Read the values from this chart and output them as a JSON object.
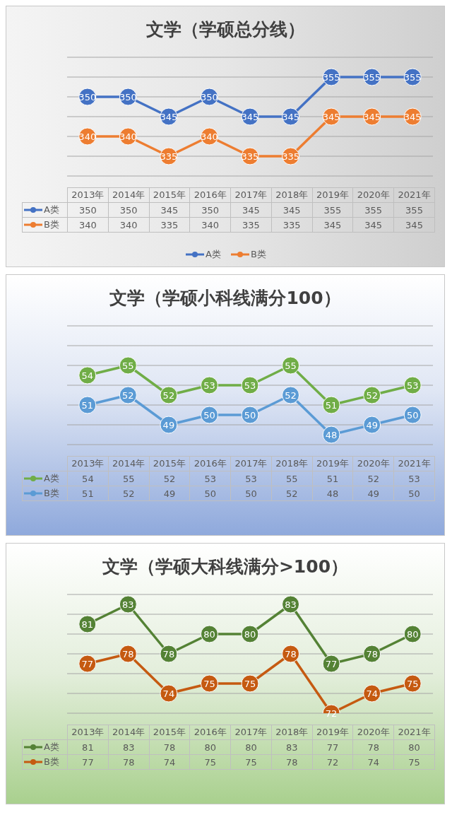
{
  "chart_data": [
    {
      "type": "line",
      "title": "文学（学硕总分线）",
      "categories": [
        "2013年",
        "2014年",
        "2015年",
        "2016年",
        "2017年",
        "2018年",
        "2019年",
        "2020年",
        "2021年"
      ],
      "series": [
        {
          "name": "A类",
          "color": "#4472c4",
          "values": [
            350,
            350,
            345,
            350,
            345,
            345,
            355,
            355,
            355
          ],
          "value_labels": [
            "350",
            "350",
            "345",
            "350",
            "345",
            "345",
            "355",
            "355",
            "355"
          ]
        },
        {
          "name": "B类",
          "color": "#ed7d31",
          "values": [
            340,
            340,
            335,
            340,
            335,
            335,
            345,
            345,
            345
          ],
          "value_labels": [
            "340",
            "340",
            "335",
            "340",
            "335",
            "335",
            "345",
            "345",
            "345"
          ]
        }
      ],
      "ylim": [
        330,
        360
      ],
      "yticks": [
        {
          "value": 330,
          "label": null
        },
        {
          "value": 335,
          "label": null
        },
        {
          "value": 340,
          "label": null
        },
        {
          "value": 345,
          "label": null
        },
        {
          "value": 350,
          "label": null
        },
        {
          "value": 355,
          "label": null
        },
        {
          "value": 360,
          "label": null
        }
      ],
      "grid": "y",
      "legend": "bottom",
      "marker": "circle",
      "line_style": "solid",
      "annotations": [
        "350",
        "350",
        "345",
        "350",
        "345",
        "345",
        "355",
        "355",
        "355",
        "340",
        "340",
        "335",
        "340",
        "335",
        "335",
        "345",
        "345",
        "345"
      ]
    },
    {
      "type": "line",
      "title": "文学（学硕小科线满分100）",
      "categories": [
        "2013年",
        "2014年",
        "2015年",
        "2016年",
        "2017年",
        "2018年",
        "2019年",
        "2020年",
        "2021年"
      ],
      "series": [
        {
          "name": "A类",
          "color": "#70ad47",
          "values": [
            54,
            55,
            52,
            53,
            53,
            55,
            51,
            52,
            53
          ],
          "value_labels": [
            "54",
            "55",
            "52",
            "53",
            "53",
            "55",
            "51",
            "52",
            "53"
          ]
        },
        {
          "name": "B类",
          "color": "#5b9bd5",
          "values": [
            51,
            52,
            49,
            50,
            50,
            52,
            48,
            49,
            50
          ],
          "value_labels": [
            "51",
            "52",
            "49",
            "50",
            "50",
            "52",
            "48",
            "49",
            "50"
          ]
        }
      ],
      "ylim": [
        47,
        59
      ],
      "yticks": [
        {
          "value": 47,
          "label": null
        },
        {
          "value": 49,
          "label": null
        },
        {
          "value": 51,
          "label": null
        },
        {
          "value": 53,
          "label": null
        },
        {
          "value": 55,
          "label": null
        },
        {
          "value": 57,
          "label": null
        },
        {
          "value": 59,
          "label": null
        }
      ],
      "grid": "y",
      "legend": "left",
      "marker": "circle",
      "line_style": "solid",
      "annotations": [
        "54",
        "55",
        "52",
        "53",
        "53",
        "55",
        "51",
        "52",
        "53",
        "51",
        "52",
        "49",
        "50",
        "50",
        "52",
        "48",
        "49",
        "50"
      ]
    },
    {
      "type": "line",
      "title": "文学（学硕大科线满分>100）",
      "categories": [
        "2013年",
        "2014年",
        "2015年",
        "2016年",
        "2017年",
        "2018年",
        "2019年",
        "2020年",
        "2021年"
      ],
      "series": [
        {
          "name": "A类",
          "color": "#548235",
          "values": [
            81,
            83,
            78,
            80,
            80,
            83,
            77,
            78,
            80
          ],
          "value_labels": [
            "81",
            "83",
            "78",
            "80",
            "80",
            "83",
            "77",
            "78",
            "80"
          ]
        },
        {
          "name": "B类",
          "color": "#c55a11",
          "values": [
            77,
            78,
            74,
            75,
            75,
            78,
            72,
            74,
            75
          ],
          "value_labels": [
            "77",
            "78",
            "74",
            "75",
            "75",
            "78",
            "72",
            "74",
            "75"
          ]
        }
      ],
      "ylim": [
        72,
        84
      ],
      "yticks": [
        {
          "value": 72,
          "label": null
        },
        {
          "value": 74,
          "label": null
        },
        {
          "value": 76,
          "label": null
        },
        {
          "value": 78,
          "label": null
        },
        {
          "value": 80,
          "label": null
        },
        {
          "value": 82,
          "label": null
        },
        {
          "value": 84,
          "label": null
        }
      ],
      "grid": "y",
      "legend": "left",
      "marker": "circle",
      "line_style": "solid",
      "annotations": [
        "81",
        "83",
        "78",
        "80",
        "80",
        "83",
        "77",
        "78",
        "80",
        "77",
        "78",
        "74",
        "75",
        "75",
        "78",
        "72",
        "74",
        "75"
      ]
    }
  ]
}
